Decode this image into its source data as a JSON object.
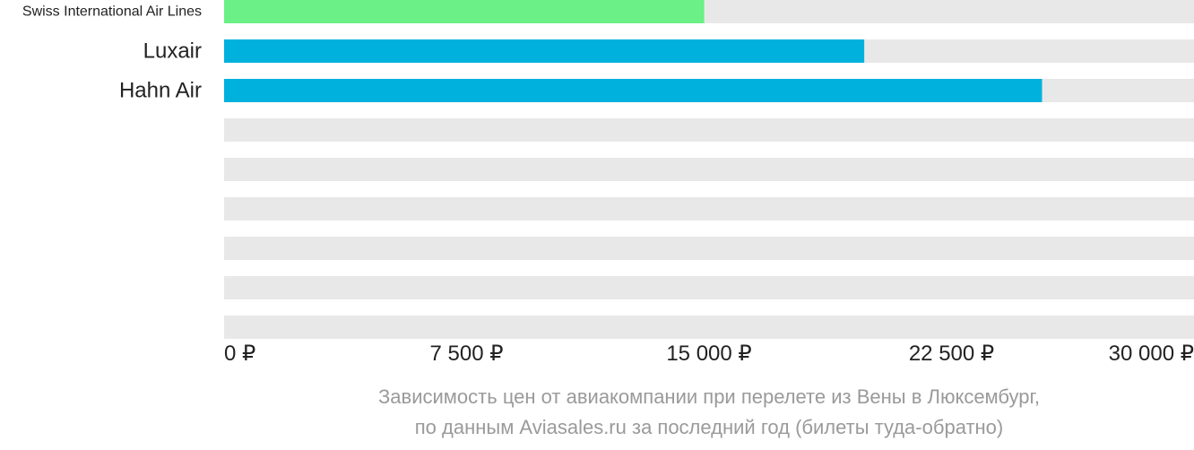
{
  "chart_data": {
    "type": "bar",
    "orientation": "horizontal",
    "categories": [
      "Swiss International Air Lines",
      "Luxair",
      "Hahn Air",
      "",
      "",
      "",
      "",
      "",
      ""
    ],
    "values": [
      14850,
      19800,
      25300,
      null,
      null,
      null,
      null,
      null,
      null
    ],
    "bar_colors": [
      "#6bf087",
      "#00b1dd",
      "#00b1dd"
    ],
    "track_color": "#e8e8e8",
    "xlim": [
      0,
      30000
    ],
    "x_ticks": [
      0,
      7500,
      15000,
      22500,
      30000
    ],
    "x_tick_labels": [
      "0 ₽",
      "7 500 ₽",
      "15 000 ₽",
      "22 500 ₽",
      "30 000 ₽"
    ],
    "grid": false,
    "legend": "none"
  },
  "caption": {
    "line1": "Зависимость цен от авиакомпании при перелете из Вены в Люксембург,",
    "line2": "по данным Aviasales.ru за последний год (билеты туда-обратно)"
  }
}
